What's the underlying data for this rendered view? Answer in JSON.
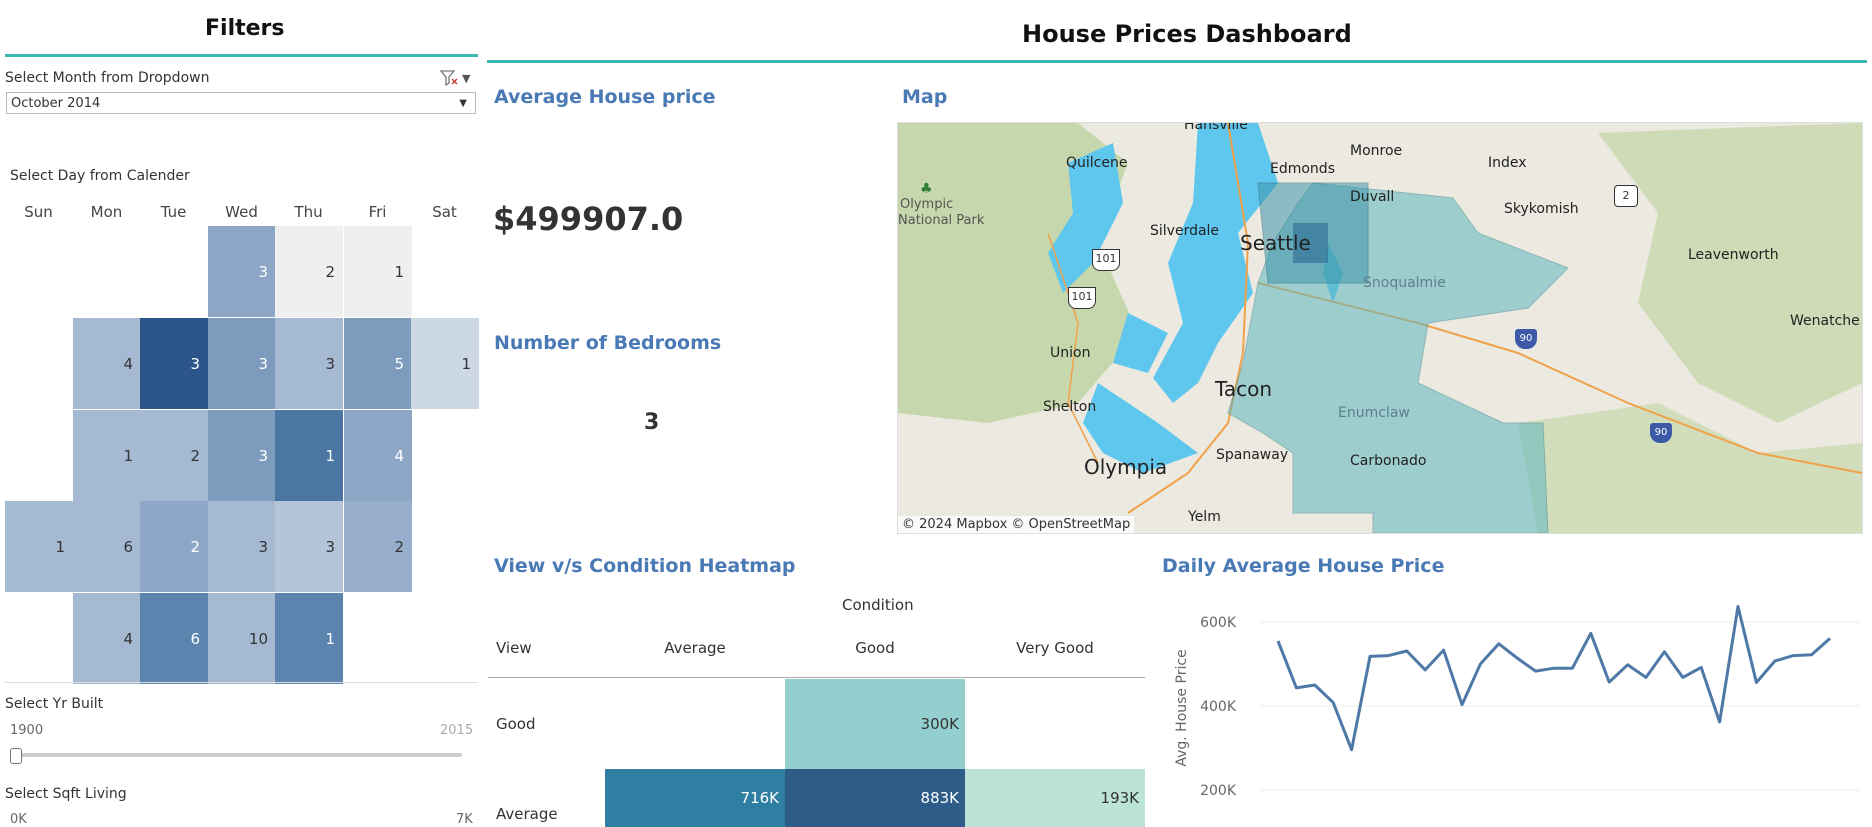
{
  "filters": {
    "title": "Filters",
    "month_label": "Select Month from Dropdown",
    "month_value": "October 2014",
    "day_label": "Select Day from Calender",
    "weekdays": [
      "Sun",
      "Mon",
      "Tue",
      "Wed",
      "Thu",
      "Fri",
      "Sat"
    ],
    "calendar": [
      {
        "row": 0,
        "col": 3,
        "count": "3",
        "color": "#8ea7c6"
      },
      {
        "row": 0,
        "col": 4,
        "count": "2",
        "color": "#efefef"
      },
      {
        "row": 0,
        "col": 5,
        "count": "1",
        "color": "#efefef"
      },
      {
        "row": 1,
        "col": 1,
        "count": "4",
        "color": "#a5b9d3"
      },
      {
        "row": 1,
        "col": 2,
        "count": "3",
        "color": "#2c5689"
      },
      {
        "row": 1,
        "col": 3,
        "count": "3",
        "color": "#7d9bbd"
      },
      {
        "row": 1,
        "col": 4,
        "count": "3",
        "color": "#a5b9d3"
      },
      {
        "row": 1,
        "col": 5,
        "count": "5",
        "color": "#7d9bbd"
      },
      {
        "row": 1,
        "col": 6,
        "count": "1",
        "color": "#cdd8e5"
      },
      {
        "row": 2,
        "col": 1,
        "count": "1",
        "color": "#a5b9d3"
      },
      {
        "row": 2,
        "col": 2,
        "count": "2",
        "color": "#a5b9d3"
      },
      {
        "row": 2,
        "col": 3,
        "count": "3",
        "color": "#7d9bbd"
      },
      {
        "row": 2,
        "col": 4,
        "count": "1",
        "color": "#4b75a3"
      },
      {
        "row": 2,
        "col": 5,
        "count": "4",
        "color": "#8ea7c6"
      },
      {
        "row": 3,
        "col": 0,
        "count": "1",
        "color": "#a5b9d3"
      },
      {
        "row": 3,
        "col": 1,
        "count": "6",
        "color": "#a5b9d3"
      },
      {
        "row": 3,
        "col": 2,
        "count": "2",
        "color": "#8ea7c6"
      },
      {
        "row": 3,
        "col": 3,
        "count": "3",
        "color": "#a5b9d3"
      },
      {
        "row": 3,
        "col": 4,
        "count": "3",
        "color": "#b4c5da"
      },
      {
        "row": 3,
        "col": 5,
        "count": "2",
        "color": "#96aecb"
      },
      {
        "row": 4,
        "col": 1,
        "count": "4",
        "color": "#a5b9d3"
      },
      {
        "row": 4,
        "col": 2,
        "count": "6",
        "color": "#5d83af"
      },
      {
        "row": 4,
        "col": 3,
        "count": "10",
        "color": "#a5b9d3"
      },
      {
        "row": 4,
        "col": 4,
        "count": "1",
        "color": "#5d83af"
      }
    ],
    "yr_label": "Select Yr Built",
    "yr_min": "1900",
    "yr_max": "2015",
    "sqft_label": "Select Sqft Living",
    "sqft_min": "0K",
    "sqft_max": "7K"
  },
  "dashboard": {
    "title": "House Prices Dashboard",
    "avg_price_title": "Average House price",
    "avg_price_value": "$499907.0",
    "bedrooms_title": "Number of Bedrooms",
    "bedrooms_value": "3",
    "map_title": "Map",
    "map_attribution": "© 2024 Mapbox  © OpenStreetMap",
    "map_places": {
      "hansville": "Hansville",
      "quilcene": "Quilcene",
      "edmonds": "Edmonds",
      "monroe": "Monroe",
      "index": "Index",
      "duvall": "Duvall",
      "olympic": "Olympic",
      "national_park": "National Park",
      "silverdale": "Silverdale",
      "seattle": "Seattle",
      "skykomish": "Skykomish",
      "leavenworth": "Leavenworth",
      "wenatchee": "Wenatche",
      "snoqualmie": "Snoqualmie",
      "union": "Union",
      "tacoma": "Tacon",
      "shelton": "Shelton",
      "enumclaw": "Enumclaw",
      "spanaway": "Spanaway",
      "carbonado": "Carbonado",
      "olympia": "Olympia",
      "yelm": "Yelm",
      "hw101a": "101",
      "hw101b": "101",
      "hw2": "2",
      "i90a": "90",
      "i90b": "90"
    },
    "heatmap": {
      "title": "View v/s Condition Heatmap",
      "col_axis": "Condition",
      "row_axis": "View",
      "columns": [
        "Average",
        "Good",
        "Very Good"
      ],
      "rows": [
        {
          "label": "Good",
          "cells": [
            {
              "v": "",
              "c": "#ffffff"
            },
            {
              "v": "300K",
              "c": "#94cfd0"
            },
            {
              "v": "",
              "c": "#ffffff"
            }
          ]
        },
        {
          "label": "Average",
          "cells": [
            {
              "v": "716K",
              "c": "#2f7fa3"
            },
            {
              "v": "883K",
              "c": "#2e5c88"
            },
            {
              "v": "193K",
              "c": "#bce3d8"
            }
          ]
        }
      ]
    },
    "line_title": "Daily Average House Price",
    "line_ylabel": "Avg. House Price"
  },
  "chart_data": {
    "type": "line",
    "title": "Daily Average House Price",
    "xlabel": "",
    "ylabel": "Avg. House Price",
    "yticks": [
      "600K",
      "400K",
      "200K"
    ],
    "ytick_values": [
      600000,
      400000,
      200000
    ],
    "ylim": [
      150000,
      650000
    ],
    "grid": true,
    "series": [
      {
        "values": [
          555000,
          443000,
          450000,
          408000,
          296000,
          518000,
          520000,
          531000,
          486000,
          533000,
          403000,
          500000,
          548000,
          514000,
          483000,
          490000,
          490000,
          573000,
          457000,
          498000,
          468000,
          529000,
          468000,
          492000,
          362000,
          637000,
          456000,
          507000,
          520000,
          522000,
          561000
        ]
      }
    ],
    "color": "#4e79a7"
  }
}
